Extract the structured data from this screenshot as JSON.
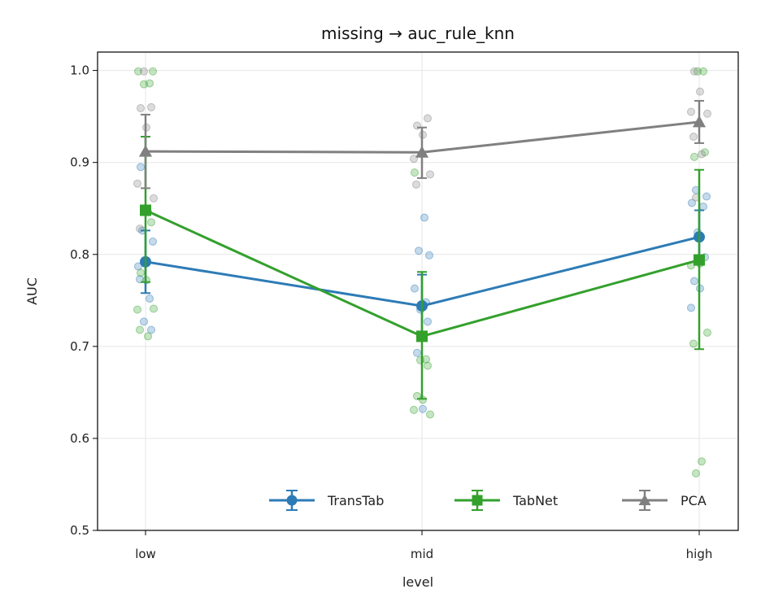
{
  "chart_data": {
    "type": "line",
    "title": "missing → auc_rule_knn",
    "xlabel": "level",
    "ylabel": "AUC",
    "categories": [
      "low",
      "mid",
      "high"
    ],
    "ylim": [
      0.5,
      1.02
    ],
    "yticks": [
      0.5,
      0.6,
      0.7,
      0.8,
      0.9,
      1.0
    ],
    "ytick_labels": [
      "0.5",
      "0.6",
      "0.7",
      "0.8",
      "0.9",
      "1.0"
    ],
    "grid": true,
    "legend_position": "lower-right",
    "series": [
      {
        "name": "TransTab",
        "color": "#2d7bb6",
        "marker": "circle",
        "mean": [
          0.792,
          0.744,
          0.819
        ],
        "err_low": [
          0.758,
          0.71,
          0.79
        ],
        "err_high": [
          0.826,
          0.778,
          0.848
        ],
        "points": [
          [
            0.773,
            0.846,
            0.826,
            0.814,
            0.787,
            0.752,
            0.727,
            0.718,
            0.895
          ],
          [
            0.84,
            0.804,
            0.799,
            0.763,
            0.748,
            0.74,
            0.727,
            0.693,
            0.632
          ],
          [
            0.87,
            0.863,
            0.856,
            0.852,
            0.824,
            0.797,
            0.771,
            0.763,
            0.742
          ]
        ]
      },
      {
        "name": "TabNet",
        "color": "#33a02c",
        "marker": "square",
        "mean": [
          0.848,
          0.711,
          0.794
        ],
        "err_low": [
          0.77,
          0.643,
          0.697
        ],
        "err_high": [
          0.928,
          0.781,
          0.892
        ],
        "points": [
          [
            0.999,
            0.999,
            0.986,
            0.985,
            0.835,
            0.78,
            0.772,
            0.74,
            0.741,
            0.718,
            0.711
          ],
          [
            0.889,
            0.686,
            0.685,
            0.679,
            0.646,
            0.642,
            0.631,
            0.626
          ],
          [
            0.999,
            0.999,
            0.911,
            0.906,
            0.79,
            0.788,
            0.715,
            0.703,
            0.575,
            0.562
          ]
        ]
      },
      {
        "name": "PCA",
        "color": "#808080",
        "marker": "triangle",
        "mean": [
          0.912,
          0.911,
          0.944
        ],
        "err_low": [
          0.872,
          0.883,
          0.921
        ],
        "err_high": [
          0.952,
          0.938,
          0.967
        ],
        "points": [
          [
            0.999,
            0.96,
            0.959,
            0.938,
            0.877,
            0.861,
            0.828
          ],
          [
            0.948,
            0.94,
            0.93,
            0.904,
            0.887,
            0.876
          ],
          [
            0.999,
            0.977,
            0.955,
            0.953,
            0.928,
            0.909,
            0.862
          ]
        ]
      }
    ]
  }
}
